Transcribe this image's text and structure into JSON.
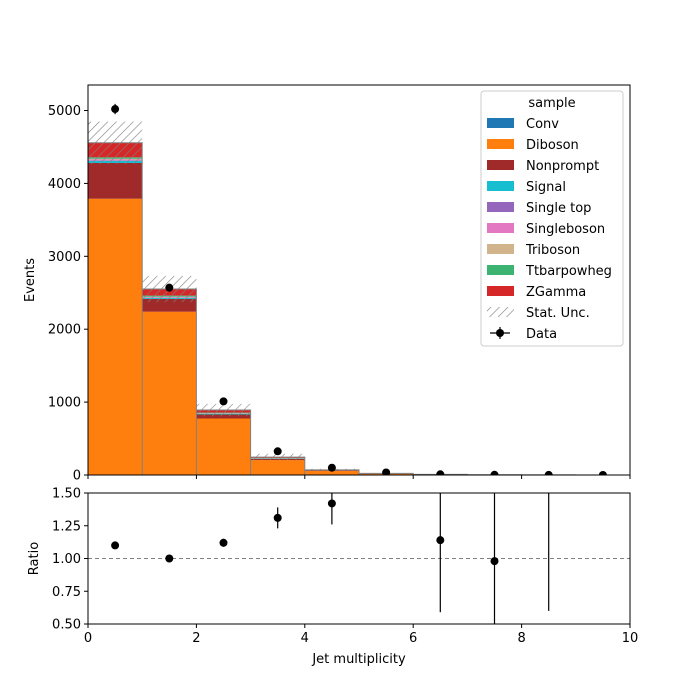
{
  "chart_data": {
    "type": "bar",
    "stacked": true,
    "main": {
      "xlabel": "",
      "ylabel": "Events",
      "xlim": [
        0,
        10
      ],
      "ylim": [
        0,
        5350
      ],
      "yticks": [
        0,
        1000,
        2000,
        3000,
        4000,
        5000
      ],
      "bin_edges": [
        0,
        1,
        2,
        3,
        4,
        5,
        6,
        7,
        8,
        9,
        10
      ],
      "series": [
        {
          "name": "Conv",
          "color": "#1f77b4",
          "values": [
            0,
            0,
            0,
            0,
            0,
            0,
            0,
            0,
            0,
            0
          ]
        },
        {
          "name": "Diboson",
          "color": "#ff7f0e",
          "values": [
            3790,
            2240,
            775,
            205,
            55,
            16,
            6,
            3,
            1,
            0.5
          ]
        },
        {
          "name": "Nonprompt",
          "color": "#a02a2a",
          "values": [
            490,
            175,
            55,
            17,
            6,
            2,
            1,
            0.5,
            0,
            0
          ]
        },
        {
          "name": "Signal",
          "color": "#17becf",
          "values": [
            30,
            15,
            8,
            3,
            1,
            0.5,
            0,
            0,
            0,
            0
          ]
        },
        {
          "name": "Single top",
          "color": "#9467bd",
          "values": [
            5,
            3,
            2,
            1,
            0.5,
            0,
            0,
            0,
            0,
            0
          ]
        },
        {
          "name": "Singleboson",
          "color": "#e377c2",
          "values": [
            15,
            8,
            3,
            1,
            0.5,
            0,
            0,
            0,
            0,
            0
          ]
        },
        {
          "name": "Triboson",
          "color": "#d2b48c",
          "values": [
            8,
            5,
            3,
            2,
            1,
            0.5,
            0,
            0,
            0,
            0
          ]
        },
        {
          "name": "Ttbarpowheg",
          "color": "#3cb371",
          "values": [
            20,
            15,
            10,
            5,
            2,
            1,
            0.5,
            0,
            0,
            0
          ]
        },
        {
          "name": "ZGamma",
          "color": "#d62728",
          "values": [
            200,
            90,
            35,
            12,
            4,
            1.5,
            0.5,
            0,
            0,
            0
          ]
        }
      ],
      "stat_unc": [
        290,
        180,
        85,
        45,
        15,
        5,
        3,
        2,
        1,
        0.5
      ],
      "data": {
        "name": "Data",
        "x": [
          0.5,
          1.5,
          2.5,
          3.5,
          4.5,
          5.5,
          6.5,
          7.5,
          8.5,
          9.5
        ],
        "y": [
          5020,
          2570,
          1010,
          325,
          100,
          35,
          10,
          3,
          1,
          0.5
        ],
        "yerr": [
          71,
          51,
          32,
          18,
          10,
          6,
          3,
          2,
          1,
          0.7
        ]
      }
    },
    "ratio": {
      "xlabel": "Jet multiplicity",
      "ylabel": "Ratio",
      "xlim": [
        0,
        10
      ],
      "ylim": [
        0.5,
        1.5
      ],
      "yticks": [
        0.5,
        0.75,
        1.0,
        1.25,
        1.5
      ],
      "ytick_labels": [
        "0.50",
        "0.75",
        "1.00",
        "1.25",
        "1.50"
      ],
      "xticks": [
        0,
        2,
        4,
        6,
        8,
        10
      ],
      "xtick_labels": [
        "0",
        "2",
        "4",
        "6",
        "8",
        "10"
      ],
      "reference_line": 1.0,
      "points": {
        "x": [
          0.5,
          1.5,
          2.5,
          3.5,
          4.5,
          6.5,
          7.5,
          8.5
        ],
        "y": [
          1.1,
          1.0,
          1.12,
          1.31,
          1.42,
          1.14,
          0.98,
          null
        ],
        "yerr_low": [
          0.015,
          0.02,
          0.03,
          0.08,
          0.16,
          0.55,
          0.6,
          null
        ],
        "yerr_high": [
          0.015,
          0.02,
          0.03,
          0.08,
          0.16,
          0.6,
          0.6,
          null
        ],
        "err_range_only": [
          [
            8.5,
            0.6,
            1.5
          ]
        ]
      }
    },
    "legend": {
      "title": "sample",
      "position": "top-right",
      "entries": [
        "Conv",
        "Diboson",
        "Nonprompt",
        "Signal",
        "Single top",
        "Singleboson",
        "Triboson",
        "Ttbarpowheg",
        "ZGamma",
        "Stat. Unc.",
        "Data"
      ]
    }
  }
}
